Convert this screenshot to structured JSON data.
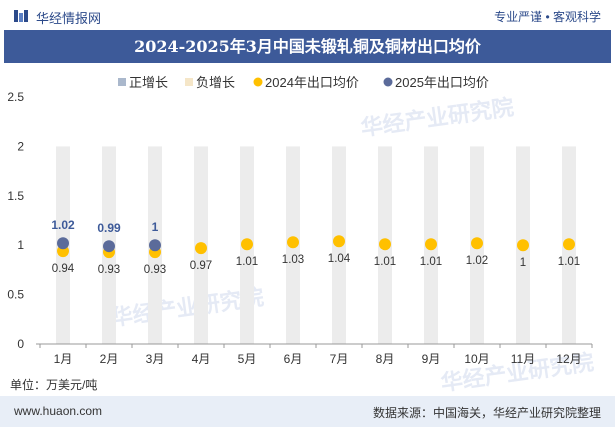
{
  "header": {
    "brand": "华经情报网",
    "tagline": "专业严谨 • 客观科学"
  },
  "title": "2024-2025年3月中国未锻轧铜及铜材出口均价",
  "unit_label": "单位：万美元/吨",
  "footer": {
    "url": "www.huaon.com",
    "source": "数据来源：中国海关，华经产业研究院整理"
  },
  "watermark": "华经产业研究院",
  "watermark_url": "www.huaon.com",
  "colors": {
    "title_bg": "#3d5a99",
    "pos_growth": "#aab8cc",
    "neg_growth": "#f5e6c8",
    "series_2024": "#ffc000",
    "series_2025": "#5b6b9a",
    "bar_bg": "#ececec"
  },
  "chart_data": {
    "type": "scatter",
    "categories": [
      "1月",
      "2月",
      "3月",
      "4月",
      "5月",
      "6月",
      "7月",
      "8月",
      "9月",
      "10月",
      "11月",
      "12月"
    ],
    "ylim": [
      0,
      2.5
    ],
    "yticks": [
      "0",
      "0.5",
      "1",
      "1.5",
      "2",
      "2.5"
    ],
    "legend": [
      "正增长",
      "负增长",
      "2024年出口均价",
      "2025年出口均价"
    ],
    "legend_position": "top",
    "series": [
      {
        "name": "2024年出口均价",
        "values": [
          0.94,
          0.93,
          0.93,
          0.97,
          1.01,
          1.03,
          1.04,
          1.01,
          1.01,
          1.02,
          1,
          1.01
        ],
        "labels": [
          "0.94",
          "0.93",
          "0.93",
          "0.97",
          "1.01",
          "1.03",
          "1.04",
          "1.01",
          "1.01",
          "1.02",
          "1",
          "1.01"
        ]
      },
      {
        "name": "2025年出口均价",
        "values": [
          1.02,
          0.99,
          1,
          null,
          null,
          null,
          null,
          null,
          null,
          null,
          null,
          null
        ],
        "labels": [
          "1.02",
          "0.99",
          "1",
          "",
          "",
          "",
          "",
          "",
          "",
          "",
          "",
          ""
        ]
      }
    ]
  }
}
